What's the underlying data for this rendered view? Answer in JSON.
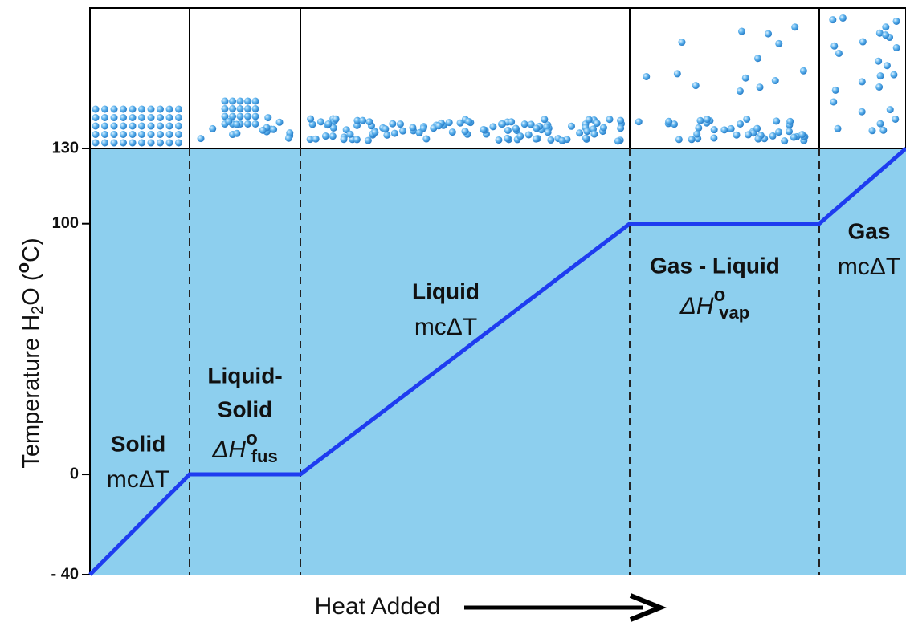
{
  "chart_data": {
    "type": "line",
    "ylabel": [
      "Temperature H",
      "2",
      "O (",
      "o",
      "C)"
    ],
    "xlabel": "Heat Added",
    "ylim": [
      -40,
      130
    ],
    "yticks": [
      {
        "value": -40,
        "label": "- 40"
      },
      0,
      100,
      130
    ],
    "fill": "#8dcfee",
    "series": [
      {
        "color": "#1e3cf0",
        "values": [
          -40,
          0,
          0,
          100,
          100,
          130
        ]
      }
    ],
    "annotations": [
      {
        "lines": [
          "Solid"
        ],
        "formula": "mcΔT"
      },
      {
        "lines": [
          "Liquid-",
          "Solid"
        ],
        "formula": {
          "base": "ΔH",
          "sup": "o",
          "sub": "fus"
        }
      },
      {
        "lines": [
          "Liquid"
        ],
        "formula": "mcΔT"
      },
      {
        "lines": [
          "Gas - Liquid"
        ],
        "formula": {
          "base": "ΔH",
          "sup": "o",
          "sub": "vap"
        }
      },
      {
        "lines": [
          "Gas"
        ],
        "formula": "mcΔT"
      }
    ]
  }
}
